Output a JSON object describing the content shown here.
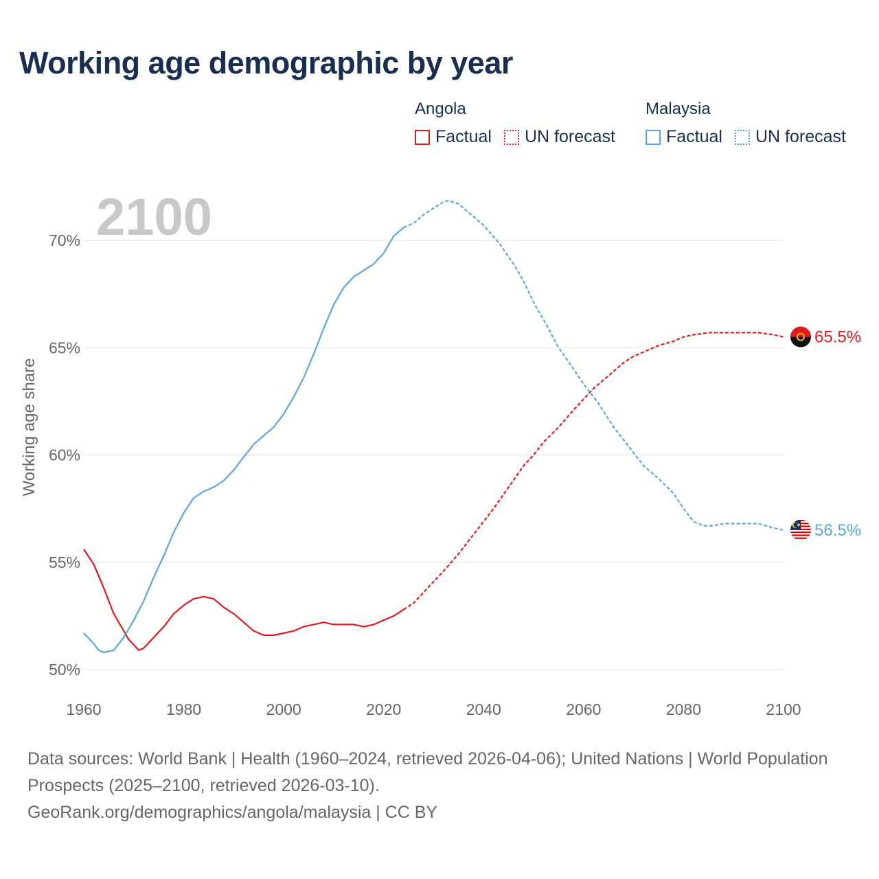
{
  "title": "Working age demographic by year",
  "legend": {
    "angola": {
      "country": "Angola",
      "factual": "Factual",
      "forecast": "UN forecast"
    },
    "malaysia": {
      "country": "Malaysia",
      "factual": "Factual",
      "forecast": "UN forecast"
    }
  },
  "colors": {
    "angola": "#e31a1c",
    "malaysia": "#5ba4e5",
    "title": "#1a2e4f",
    "muted": "#666666"
  },
  "footer": {
    "sources": "Data sources: World Bank | Health (1960–2024, retrieved 2026-04-06); United Nations | World Population Prospects (2025–2100, retrieved 2026-03-10).",
    "attribution": "GeoRank.org/demographics/angola/malaysia | CC BY"
  },
  "chart_data": {
    "type": "line",
    "year_label": "2100",
    "ylabel": "Working age share",
    "xlim": [
      1960,
      2100
    ],
    "ylim": [
      50,
      72
    ],
    "x_ticks": [
      1960,
      1980,
      2000,
      2020,
      2040,
      2060,
      2080,
      2100
    ],
    "y_ticks": [
      50,
      55,
      60,
      65,
      70
    ],
    "y_tick_labels": [
      "50%",
      "55%",
      "60%",
      "65%",
      "70%"
    ],
    "factual_end_year": 2024,
    "series": [
      {
        "name": "Angola",
        "flag_icon": "angola-flag-icon",
        "end_label": "65.5%",
        "points": [
          [
            1960,
            55.6
          ],
          [
            1962,
            54.9
          ],
          [
            1964,
            53.8
          ],
          [
            1966,
            52.6
          ],
          [
            1968,
            51.8
          ],
          [
            1969,
            51.4
          ],
          [
            1971,
            50.9
          ],
          [
            1972,
            51.0
          ],
          [
            1974,
            51.5
          ],
          [
            1976,
            52.0
          ],
          [
            1978,
            52.6
          ],
          [
            1980,
            53.0
          ],
          [
            1982,
            53.3
          ],
          [
            1984,
            53.4
          ],
          [
            1986,
            53.3
          ],
          [
            1988,
            52.9
          ],
          [
            1990,
            52.6
          ],
          [
            1992,
            52.2
          ],
          [
            1994,
            51.8
          ],
          [
            1996,
            51.6
          ],
          [
            1998,
            51.6
          ],
          [
            2000,
            51.7
          ],
          [
            2002,
            51.8
          ],
          [
            2004,
            52.0
          ],
          [
            2006,
            52.1
          ],
          [
            2008,
            52.2
          ],
          [
            2010,
            52.1
          ],
          [
            2012,
            52.1
          ],
          [
            2014,
            52.1
          ],
          [
            2016,
            52.0
          ],
          [
            2018,
            52.1
          ],
          [
            2020,
            52.3
          ],
          [
            2022,
            52.5
          ],
          [
            2024,
            52.8
          ],
          [
            2026,
            53.1
          ],
          [
            2028,
            53.6
          ],
          [
            2030,
            54.1
          ],
          [
            2032,
            54.6
          ],
          [
            2035,
            55.4
          ],
          [
            2038,
            56.3
          ],
          [
            2040,
            56.9
          ],
          [
            2042,
            57.5
          ],
          [
            2045,
            58.5
          ],
          [
            2048,
            59.5
          ],
          [
            2050,
            60.0
          ],
          [
            2052,
            60.6
          ],
          [
            2055,
            61.3
          ],
          [
            2058,
            62.1
          ],
          [
            2060,
            62.6
          ],
          [
            2062,
            63.1
          ],
          [
            2065,
            63.7
          ],
          [
            2068,
            64.3
          ],
          [
            2070,
            64.6
          ],
          [
            2073,
            64.9
          ],
          [
            2075,
            65.1
          ],
          [
            2078,
            65.3
          ],
          [
            2080,
            65.5
          ],
          [
            2082,
            65.6
          ],
          [
            2085,
            65.7
          ],
          [
            2088,
            65.7
          ],
          [
            2090,
            65.7
          ],
          [
            2092,
            65.7
          ],
          [
            2095,
            65.7
          ],
          [
            2098,
            65.6
          ],
          [
            2100,
            65.5
          ]
        ]
      },
      {
        "name": "Malaysia",
        "flag_icon": "malaysia-flag-icon",
        "end_label": "56.5%",
        "points": [
          [
            1960,
            51.7
          ],
          [
            1962,
            51.2
          ],
          [
            1963,
            50.9
          ],
          [
            1964,
            50.8
          ],
          [
            1966,
            50.9
          ],
          [
            1968,
            51.5
          ],
          [
            1970,
            52.3
          ],
          [
            1972,
            53.2
          ],
          [
            1974,
            54.3
          ],
          [
            1976,
            55.3
          ],
          [
            1978,
            56.4
          ],
          [
            1980,
            57.3
          ],
          [
            1982,
            58.0
          ],
          [
            1984,
            58.3
          ],
          [
            1986,
            58.5
          ],
          [
            1988,
            58.8
          ],
          [
            1990,
            59.3
          ],
          [
            1992,
            59.9
          ],
          [
            1994,
            60.5
          ],
          [
            1996,
            60.9
          ],
          [
            1998,
            61.3
          ],
          [
            2000,
            61.9
          ],
          [
            2002,
            62.7
          ],
          [
            2004,
            63.6
          ],
          [
            2006,
            64.7
          ],
          [
            2008,
            65.9
          ],
          [
            2010,
            67.0
          ],
          [
            2012,
            67.8
          ],
          [
            2014,
            68.3
          ],
          [
            2016,
            68.6
          ],
          [
            2018,
            68.9
          ],
          [
            2020,
            69.4
          ],
          [
            2022,
            70.2
          ],
          [
            2024,
            70.6
          ],
          [
            2026,
            70.8
          ],
          [
            2028,
            71.2
          ],
          [
            2030,
            71.5
          ],
          [
            2032,
            71.8
          ],
          [
            2033,
            71.85
          ],
          [
            2035,
            71.7
          ],
          [
            2037,
            71.3
          ],
          [
            2040,
            70.7
          ],
          [
            2043,
            69.9
          ],
          [
            2046,
            68.9
          ],
          [
            2048,
            68.1
          ],
          [
            2050,
            67.1
          ],
          [
            2052,
            66.3
          ],
          [
            2055,
            65.0
          ],
          [
            2058,
            64.0
          ],
          [
            2060,
            63.3
          ],
          [
            2063,
            62.4
          ],
          [
            2066,
            61.3
          ],
          [
            2068,
            60.7
          ],
          [
            2070,
            60.1
          ],
          [
            2072,
            59.5
          ],
          [
            2075,
            58.9
          ],
          [
            2078,
            58.2
          ],
          [
            2080,
            57.5
          ],
          [
            2082,
            56.9
          ],
          [
            2084,
            56.7
          ],
          [
            2086,
            56.7
          ],
          [
            2088,
            56.8
          ],
          [
            2090,
            56.8
          ],
          [
            2092,
            56.8
          ],
          [
            2095,
            56.8
          ],
          [
            2098,
            56.6
          ],
          [
            2100,
            56.5
          ]
        ]
      }
    ]
  }
}
